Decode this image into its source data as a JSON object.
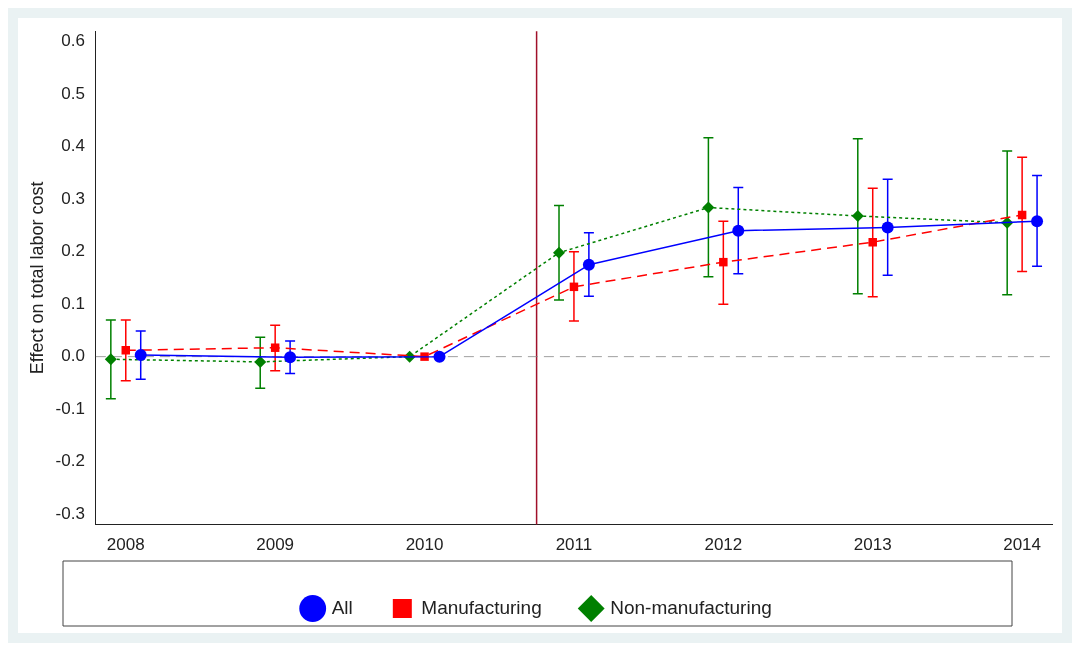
{
  "chart_data": {
    "type": "line",
    "ylabel": "Effect on total labor cost",
    "xlim": [
      2007.8,
      2014.2
    ],
    "xticks": [
      2008,
      2009,
      2010,
      2011,
      2012,
      2013,
      2014
    ],
    "ylim": [
      -0.32,
      0.62
    ],
    "yticks": [
      {
        "value": -0.3,
        "label": "-0.3"
      },
      {
        "value": -0.2,
        "label": "-0.2"
      },
      {
        "value": -0.1,
        "label": "-0.1"
      },
      {
        "value": 0,
        "label": "0.0"
      },
      {
        "value": 0.1,
        "label": "0.1"
      },
      {
        "value": 0.2,
        "label": "0.2"
      },
      {
        "value": 0.3,
        "label": "0.3"
      },
      {
        "value": 0.4,
        "label": "0.4"
      },
      {
        "value": 0.5,
        "label": "0.5"
      },
      {
        "value": 0.6,
        "label": "0.6"
      }
    ],
    "grid": false,
    "legend": "bottom",
    "ref_lines": [
      {
        "axis": "x",
        "value": 2010.75,
        "color": "#a0102a",
        "line_style": "solid"
      },
      {
        "axis": "y",
        "value": 0,
        "color": "#888888",
        "line_style": "dashed"
      }
    ],
    "series": [
      {
        "name": "All",
        "color": "#0000ff",
        "marker": "circle",
        "line_style": "solid",
        "x": [
          2008.1,
          2009.1,
          2010.1,
          2011.1,
          2012.1,
          2013.1,
          2014.1
        ],
        "values": [
          0.003,
          -0.001,
          0,
          0.175,
          0.24,
          0.246,
          0.258
        ],
        "errors": [
          [
            -0.043,
            0.049
          ],
          [
            -0.032,
            0.03
          ],
          null,
          [
            0.115,
            0.236
          ],
          [
            0.158,
            0.322
          ],
          [
            0.155,
            0.338
          ],
          [
            0.172,
            0.345
          ]
        ]
      },
      {
        "name": "Manufacturing",
        "color": "#ff0000",
        "marker": "square",
        "line_style": "dashed",
        "x": [
          2008,
          2009,
          2010,
          2011,
          2012,
          2013,
          2014
        ],
        "values": [
          0.012,
          0.017,
          0,
          0.133,
          0.18,
          0.218,
          0.27
        ],
        "errors": [
          [
            -0.046,
            0.07
          ],
          [
            -0.027,
            0.06
          ],
          null,
          [
            0.068,
            0.2
          ],
          [
            0.1,
            0.258
          ],
          [
            0.114,
            0.321
          ],
          [
            0.162,
            0.38
          ]
        ]
      },
      {
        "name": "Non-manufacturing",
        "color": "#008000",
        "marker": "diamond",
        "line_style": "dotted",
        "x": [
          2007.9,
          2008.9,
          2009.9,
          2010.9,
          2011.9,
          2012.9,
          2013.9
        ],
        "values": [
          -0.005,
          -0.01,
          0,
          0.198,
          0.284,
          0.268,
          0.255
        ],
        "errors": [
          [
            -0.08,
            0.07
          ],
          [
            -0.06,
            0.037
          ],
          null,
          [
            0.108,
            0.288
          ],
          [
            0.152,
            0.417
          ],
          [
            0.12,
            0.415
          ],
          [
            0.118,
            0.392
          ]
        ]
      }
    ]
  }
}
